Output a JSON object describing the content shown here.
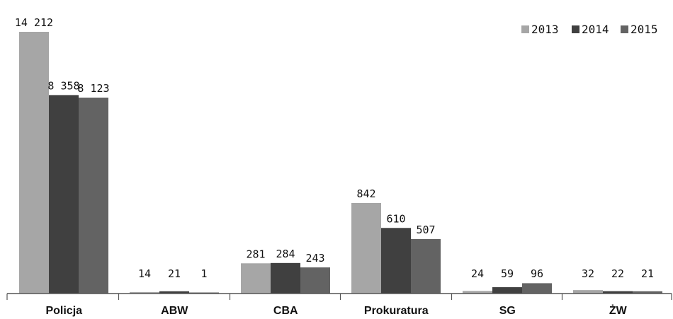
{
  "chart_data": {
    "type": "bar",
    "title": "",
    "xlabel": "",
    "ylabel": "",
    "categories": [
      "Policja",
      "ABW",
      "CBA",
      "Prokuratura",
      "SG",
      "ŻW"
    ],
    "series": [
      {
        "name": "2013",
        "color": "#a6a6a6",
        "values": [
          14212,
          14,
          281,
          842,
          24,
          32
        ],
        "labels": [
          "14 212",
          "14",
          "281",
          "842",
          "24",
          "32"
        ]
      },
      {
        "name": "2014",
        "color": "#404040",
        "values": [
          8358,
          21,
          284,
          610,
          59,
          22
        ],
        "labels": [
          "8 358",
          "21",
          "284",
          "610",
          "59",
          "22"
        ]
      },
      {
        "name": "2015",
        "color": "#636363",
        "values": [
          8123,
          1,
          243,
          507,
          96,
          21
        ],
        "labels": [
          "8 123",
          "1",
          "243",
          "507",
          "96",
          "21"
        ]
      }
    ],
    "axis_break": true,
    "grid": false,
    "legend_position": "top-right"
  }
}
